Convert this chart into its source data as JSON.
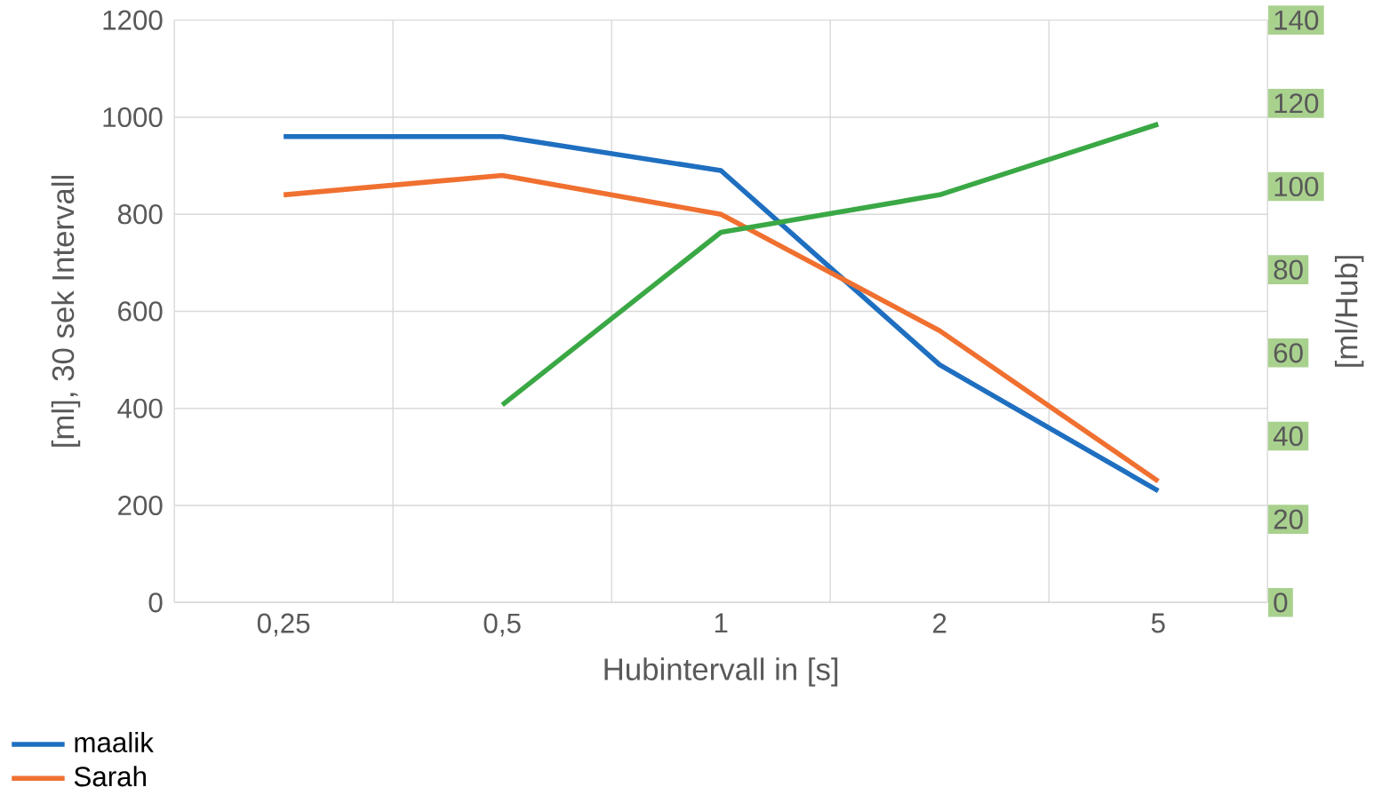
{
  "chart_data": {
    "type": "line",
    "xlabel": "Hubintervall in [s]",
    "ylabel": "[ml], 30 sek Intervall",
    "y2label": "[ml/Hub]",
    "categories": [
      "0,25",
      "0,5",
      "1",
      "2",
      "5"
    ],
    "series": [
      {
        "name": "maalik",
        "color": "#1f6fc0",
        "values": [
          960,
          960,
          890,
          490,
          230
        ]
      },
      {
        "name": "Sarah",
        "color": "#f07030",
        "values": [
          840,
          880,
          800,
          560,
          250
        ]
      },
      {
        "color": "#3aa845",
        "axis": "y2",
        "values": [
          null,
          47.5,
          89,
          98,
          115
        ]
      }
    ],
    "ylim": [
      0,
      1200
    ],
    "yticks": [
      0,
      200,
      400,
      600,
      800,
      1000,
      1200
    ],
    "y2lim": [
      0,
      140
    ],
    "y2ticks": [
      0,
      20,
      40,
      60,
      80,
      100,
      120,
      140
    ],
    "grid": true,
    "legend": "bottom left",
    "marker": "none",
    "line_style": "solid"
  }
}
